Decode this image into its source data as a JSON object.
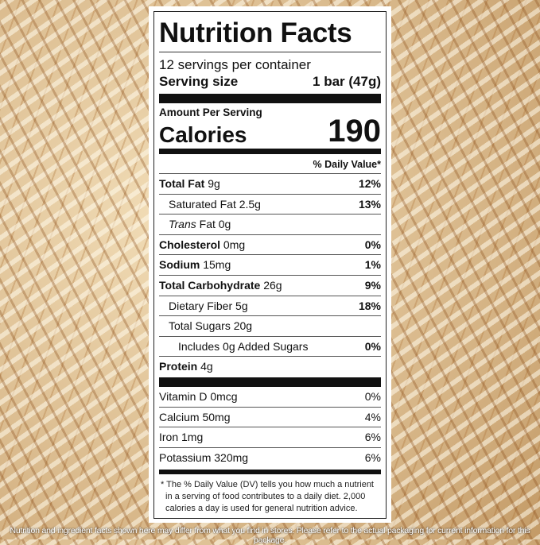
{
  "title": "Nutrition Facts",
  "servings_per_container": "12 servings per container",
  "serving_size_label": "Serving size",
  "serving_size_value": "1 bar (47g)",
  "amount_per_serving": "Amount Per Serving",
  "calories_label": "Calories",
  "calories_value": "190",
  "dv_header": "% Daily Value*",
  "nutrients": [
    {
      "name": "Total Fat",
      "amount": "9g",
      "dv": "12%"
    },
    {
      "name": "Saturated Fat",
      "amount": "2.5g",
      "dv": "13%"
    },
    {
      "name": "Trans",
      "name2": "Fat",
      "amount": "0g",
      "dv": ""
    },
    {
      "name": "Cholesterol",
      "amount": "0mg",
      "dv": "0%"
    },
    {
      "name": "Sodium",
      "amount": "15mg",
      "dv": "1%"
    },
    {
      "name": "Total Carbohydrate",
      "amount": "26g",
      "dv": "9%"
    },
    {
      "name": "Dietary Fiber",
      "amount": "5g",
      "dv": "18%"
    },
    {
      "name": "Total Sugars",
      "amount": "20g",
      "dv": ""
    },
    {
      "name": "Includes 0g Added Sugars",
      "amount": "",
      "dv": "0%"
    },
    {
      "name": "Protein",
      "amount": "4g",
      "dv": ""
    }
  ],
  "vitamins": [
    {
      "name": "Vitamin D",
      "amount": "0mcg",
      "dv": "0%"
    },
    {
      "name": "Calcium",
      "amount": "50mg",
      "dv": "4%"
    },
    {
      "name": "Iron",
      "amount": "1mg",
      "dv": "6%"
    },
    {
      "name": "Potassium",
      "amount": "320mg",
      "dv": "6%"
    }
  ],
  "footnote": "* The % Daily Value (DV) tells you how much a nutrient in a serving of food contributes to a daily diet. 2,000 calories a day is used for general nutrition advice.",
  "disclaimer": "Nutrition and ingredient facts shown here may differ from what you find in stores. Please refer to the actual packaging for current information for this package."
}
